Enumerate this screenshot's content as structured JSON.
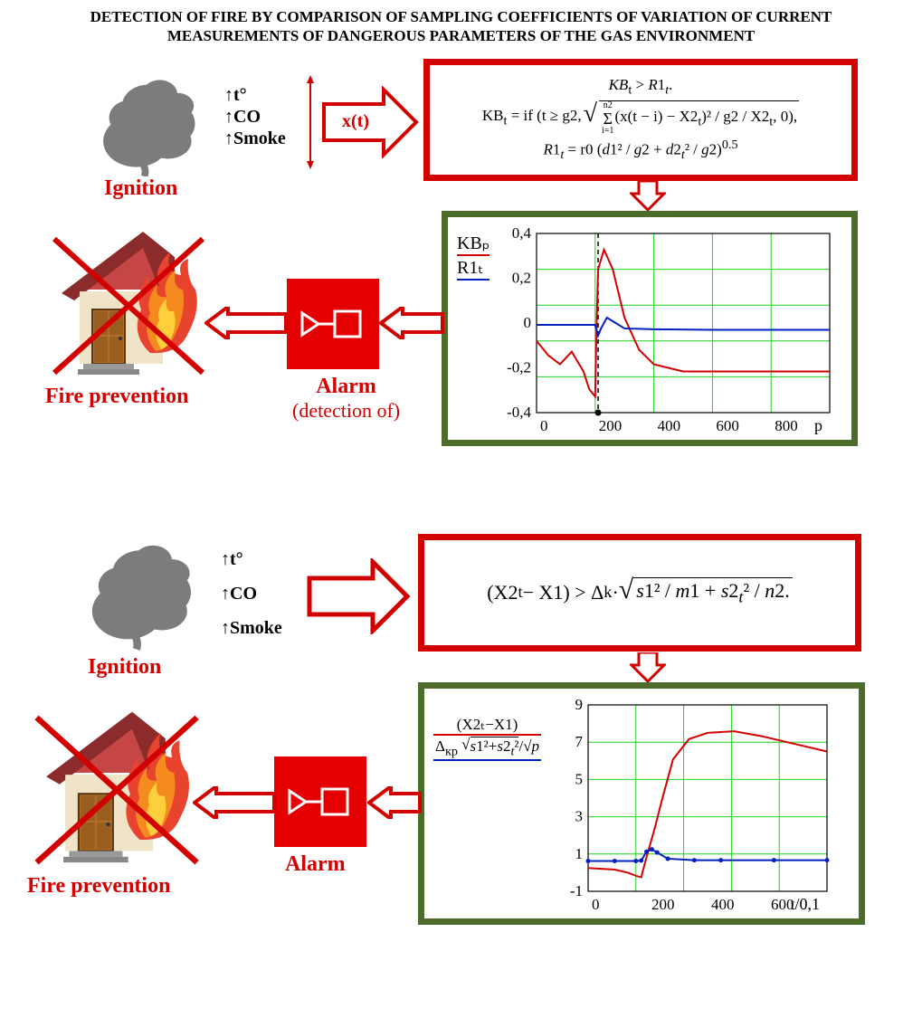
{
  "title": "DETECTION OF FIRE BY COMPARISON OF SAMPLING COEFFICIENTS OF VARIATION OF CURRENT MEASUREMENTS OF DANGEROUS PARAMETERS OF THE GAS ENVIRONMENT",
  "colors": {
    "red": "#d30000",
    "green": "#4d6b2a",
    "smoke": "#7c7c7c",
    "alarm_bg": "#e40000",
    "grid": "#1bd41b",
    "line_kb": "#d30000",
    "line_r1": "#0020c0",
    "text": "#000000",
    "bg": "#ffffff"
  },
  "params": {
    "t": "↑t°",
    "co": "↑CO",
    "smoke": "↑Smoke"
  },
  "labels": {
    "ignition": "Ignition",
    "alarm": "Alarm",
    "detection": "(detection of)",
    "fire_prevention": "Fire prevention",
    "xt": "x(t)"
  },
  "formula1": {
    "line1": "KBₜ > R1ₜ.",
    "line2": "KBₜ = if (t ≥ g2, √(Σ(x(t−i) − X2ₜ)² / g2 / X2ₜ, 0),",
    "line2_sum": "i=1",
    "line2_sum_top": "n2",
    "line3": "R1ₜ = r0 (d1² / g2 + d2ₜ² / g2)⁰·⁵"
  },
  "formula2": "(X2ₜ − X1) > Δₖ · √(s1² / m1 + s2ₜ² / n2.)",
  "chart1": {
    "legend_kb": "KBₚ",
    "legend_r1": "R1ₜ",
    "xlabel": "p",
    "xticks": [
      "0",
      "200",
      "400",
      "600",
      "800"
    ],
    "yticks": [
      "-0,4",
      "-0,2",
      "0",
      "0,2",
      "0,4"
    ],
    "ylim": [
      -0.45,
      0.55
    ],
    "xlim": [
      0,
      1000
    ],
    "red_data": [
      [
        0,
        -0.05
      ],
      [
        40,
        -0.13
      ],
      [
        80,
        -0.18
      ],
      [
        120,
        -0.11
      ],
      [
        160,
        -0.22
      ],
      [
        180,
        -0.32
      ],
      [
        200,
        -0.36
      ],
      [
        205,
        0.05
      ],
      [
        210,
        0.35
      ],
      [
        230,
        0.46
      ],
      [
        260,
        0.35
      ],
      [
        300,
        0.08
      ],
      [
        350,
        -0.1
      ],
      [
        400,
        -0.18
      ],
      [
        500,
        -0.22
      ],
      [
        600,
        -0.22
      ],
      [
        700,
        -0.22
      ],
      [
        800,
        -0.22
      ],
      [
        900,
        -0.22
      ],
      [
        1000,
        -0.22
      ]
    ],
    "blue_data": [
      [
        0,
        0.04
      ],
      [
        100,
        0.04
      ],
      [
        180,
        0.04
      ],
      [
        200,
        0.04
      ],
      [
        210,
        -0.02
      ],
      [
        220,
        0.02
      ],
      [
        240,
        0.08
      ],
      [
        260,
        0.06
      ],
      [
        300,
        0.02
      ],
      [
        400,
        0.015
      ],
      [
        600,
        0.012
      ],
      [
        800,
        0.012
      ],
      [
        1000,
        0.012
      ]
    ],
    "vline_x": 210
  },
  "chart2": {
    "legend_top": "(X2ₜ−X1)",
    "legend_bot_prefix": "Δ",
    "legend_bot_sub": "кр",
    "legend_bot_rest": "√(s1²+s2ₜ²)/√p",
    "xlabel": "t/0,1",
    "xticks": [
      "0",
      "200",
      "400",
      "600"
    ],
    "yticks": [
      "-1",
      "1",
      "3",
      "5",
      "7",
      "9"
    ],
    "ylim": [
      -2,
      10
    ],
    "xlim": [
      0,
      900
    ],
    "red_data": [
      [
        0,
        -0.5
      ],
      [
        100,
        -0.6
      ],
      [
        150,
        -0.8
      ],
      [
        180,
        -1.0
      ],
      [
        200,
        -1.1
      ],
      [
        220,
        0.2
      ],
      [
        250,
        2.0
      ],
      [
        280,
        4.0
      ],
      [
        320,
        6.5
      ],
      [
        380,
        7.8
      ],
      [
        450,
        8.2
      ],
      [
        550,
        8.3
      ],
      [
        650,
        8.0
      ],
      [
        750,
        7.6
      ],
      [
        850,
        7.2
      ],
      [
        900,
        7.0
      ]
    ],
    "blue_data": [
      [
        0,
        -0.05
      ],
      [
        100,
        -0.05
      ],
      [
        180,
        -0.05
      ],
      [
        200,
        -0.02
      ],
      [
        220,
        0.55
      ],
      [
        240,
        0.7
      ],
      [
        260,
        0.5
      ],
      [
        300,
        0.1
      ],
      [
        400,
        0.0
      ],
      [
        500,
        0.0
      ],
      [
        700,
        0.0
      ],
      [
        900,
        0.0
      ]
    ]
  }
}
